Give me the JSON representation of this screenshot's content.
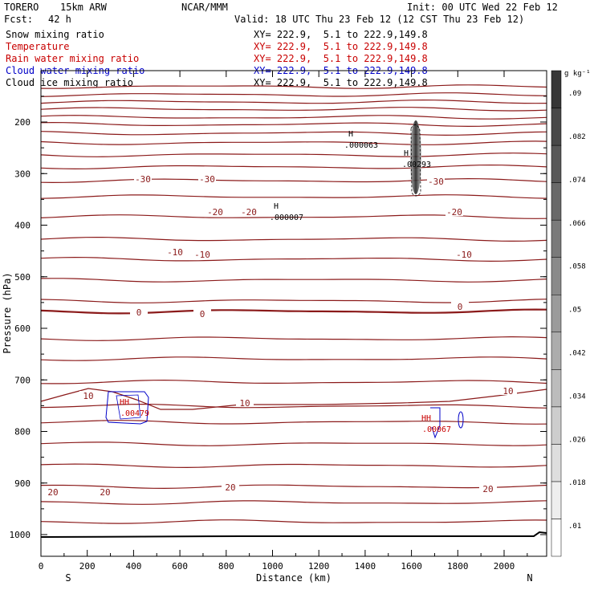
{
  "header": {
    "model": "TORERO",
    "resolution": "15km ARW",
    "org": "NCAR/MMM",
    "init": "Init: 00 UTC Wed 22 Feb 12",
    "fcst_label": "Fcst:",
    "fcst_value": "42 h",
    "valid": "Valid: 18 UTC Thu 23 Feb 12 (12 CST Thu 23 Feb 12)"
  },
  "legend": [
    {
      "label": "Snow mixing ratio",
      "xy": "XY= 222.9,  5.1 to 222.9,149.8",
      "color": "#000000"
    },
    {
      "label": "Temperature",
      "xy": "XY= 222.9,  5.1 to 222.9,149.8",
      "color": "#c80000"
    },
    {
      "label": "Rain water mixing ratio",
      "xy": "XY= 222.9,  5.1 to 222.9,149.8",
      "color": "#c80000"
    },
    {
      "label": "Cloud water mixing ratio",
      "xy": "XY= 222.9,  5.1 to 222.9,149.8",
      "color": "#0000c8"
    },
    {
      "label": "Cloud ice mixing ratio",
      "xy": "XY= 222.9,  5.1 to 222.9,149.8",
      "color": "#000000"
    }
  ],
  "chart_data": {
    "type": "cross-section",
    "xlabel": "Distance (km)",
    "ylabel": "Pressure (hPa)",
    "xlim": [
      0,
      2200
    ],
    "ylim": [
      1050,
      100
    ],
    "x_ticks": [
      "0",
      "200",
      "400",
      "600",
      "800",
      "1000",
      "1200",
      "1400",
      "1600",
      "1800",
      "2000"
    ],
    "y_ticks": [
      "200",
      "300",
      "400",
      "500",
      "600",
      "700",
      "800",
      "900",
      "1000"
    ],
    "left_end": "S",
    "right_end": "N",
    "colorbar": {
      "unit": "g kg⁻¹",
      "ticks": [
        ".01",
        ".018",
        ".026",
        ".034",
        ".042",
        ".05",
        ".058",
        ".066",
        ".074",
        ".082",
        ".09"
      ]
    },
    "temperature_labels": [
      "-30",
      "-30",
      "-30",
      "-20",
      "-20",
      "-20",
      "-10",
      "-10",
      "-10",
      "0",
      "0",
      "0",
      "10",
      "10",
      "10",
      "20",
      "20",
      "20",
      "20"
    ],
    "extrema": [
      {
        "mark": "H",
        "value": ".000063",
        "color": "#000000"
      },
      {
        "mark": "H",
        "value": ".00293",
        "color": "#000000"
      },
      {
        "mark": "H",
        "value": ".000007",
        "color": "#000000"
      },
      {
        "mark": "HH",
        "value": ".00479",
        "color": "#c80000"
      },
      {
        "mark": "HH",
        "value": ".00067",
        "color": "#c80000"
      }
    ],
    "temperature_color": "#8b1a1a",
    "cloud_water_color": "#0000c8",
    "snow_color": "#555555",
    "terrain_color": "#000000"
  }
}
